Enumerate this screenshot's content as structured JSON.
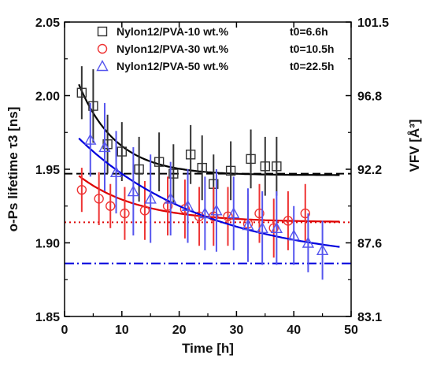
{
  "chart_data": {
    "type": "scatter",
    "xlabel": "Time [h]",
    "ylabel_left": "o-Ps lifetime τ3 [ns]",
    "ylabel_right": "VFV [Å³]",
    "xlim": [
      0,
      50
    ],
    "ylim": [
      1.85,
      2.05
    ],
    "x_ticks": [
      "0",
      "10",
      "20",
      "30",
      "40",
      "50"
    ],
    "y_ticks_left": [
      "1.85",
      "1.90",
      "1.95",
      "2.00",
      "2.05"
    ],
    "y_ticks_right": [
      "83.1",
      "87.6",
      "92.2",
      "96.8",
      "101.5"
    ],
    "legend_position": "top",
    "series": [
      {
        "name": "Nylon12/PVA-10 wt.%",
        "t0_label": "t0=6.6h",
        "marker": "square",
        "color": "#333333",
        "fit_color": "#000000",
        "x": [
          3,
          5,
          7.5,
          10,
          13,
          16.5,
          19,
          22,
          24,
          26,
          29,
          32.5,
          35,
          37
        ],
        "y": [
          2.002,
          1.993,
          1.967,
          1.962,
          1.95,
          1.955,
          1.947,
          1.96,
          1.951,
          1.94,
          1.949,
          1.957,
          1.952,
          1.952
        ],
        "err": [
          0.018,
          0.025,
          0.02,
          0.02,
          0.022,
          0.02,
          0.02,
          0.02,
          0.022,
          0.02,
          0.02,
          0.02,
          0.02,
          0.02
        ],
        "fit": {
          "a": 1.946,
          "b": 0.09,
          "tau": 6.6
        },
        "plateau": 1.947,
        "plateau_style": "dashed"
      },
      {
        "name": "Nylon12/PVA-30 wt.%",
        "t0_label": "t0=10.5h",
        "marker": "circle",
        "color": "#ee3333",
        "fit_color": "#dd0000",
        "x": [
          3,
          6,
          8,
          10.5,
          14,
          18,
          21,
          23.5,
          26,
          28.5,
          32,
          34,
          36.5,
          39,
          42
        ],
        "y": [
          1.936,
          1.93,
          1.925,
          1.92,
          1.922,
          1.925,
          1.923,
          1.918,
          1.918,
          1.918,
          1.913,
          1.92,
          1.91,
          1.915,
          1.92
        ],
        "err": [
          0.015,
          0.018,
          0.015,
          0.018,
          0.02,
          0.02,
          0.02,
          0.02,
          0.02,
          0.02,
          0.02,
          0.02,
          0.02,
          0.02,
          0.02
        ],
        "fit": {
          "a": 1.914,
          "b": 0.04,
          "tau": 10.5
        },
        "plateau": 1.914,
        "plateau_style": "dotted"
      },
      {
        "name": "Nylon12/PVA-50 wt.%",
        "t0_label": "t0=22.5h",
        "marker": "triangle",
        "color": "#5555ee",
        "fit_color": "#0000dd",
        "x": [
          4.5,
          7,
          9,
          12,
          15,
          18.5,
          21.5,
          24.5,
          26.5,
          29.5,
          32,
          34.5,
          37,
          40,
          42.5,
          45
        ],
        "y": [
          1.97,
          1.965,
          1.948,
          1.935,
          1.93,
          1.93,
          1.925,
          1.92,
          1.922,
          1.92,
          1.912,
          1.91,
          1.91,
          1.905,
          1.9,
          1.895
        ],
        "err": [
          0.025,
          0.03,
          0.028,
          0.03,
          0.03,
          0.025,
          0.025,
          0.025,
          0.028,
          0.025,
          0.025,
          0.025,
          0.025,
          0.02,
          0.02,
          0.02
        ],
        "fit": {
          "a": 1.886,
          "b": 0.095,
          "tau": 22.5
        },
        "plateau": 1.886,
        "plateau_style": "dashdot"
      }
    ]
  }
}
